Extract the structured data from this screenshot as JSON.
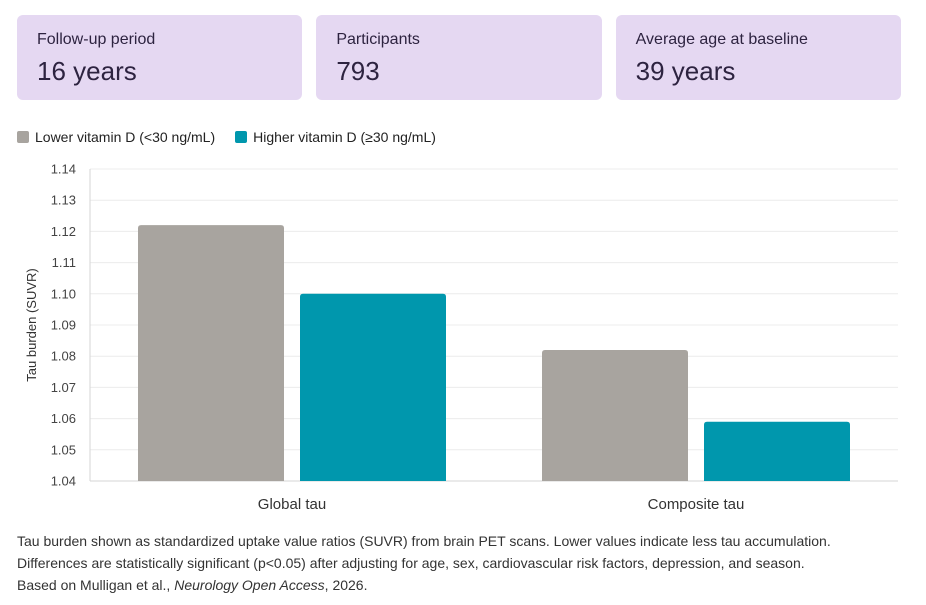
{
  "stats": [
    {
      "label": "Follow-up period",
      "value": "16 years"
    },
    {
      "label": "Participants",
      "value": "793"
    },
    {
      "label": "Average age at baseline",
      "value": "39 years"
    }
  ],
  "colors": {
    "lower": "#a8a49f",
    "higher": "#0097ad",
    "card": "#e5d8f2"
  },
  "chart_data": {
    "type": "bar",
    "categories": [
      "Global tau",
      "Composite tau"
    ],
    "series": [
      {
        "name": "Lower vitamin D (<30 ng/mL)",
        "values": [
          1.122,
          1.082
        ],
        "color": "#a8a49f"
      },
      {
        "name": "Higher vitamin D (≥30 ng/mL)",
        "values": [
          1.1,
          1.059
        ],
        "color": "#0097ad"
      }
    ],
    "ylabel": "Tau burden (SUVR)",
    "ylim": [
      1.04,
      1.14
    ],
    "yticks": [
      "1.04",
      "1.05",
      "1.06",
      "1.07",
      "1.08",
      "1.09",
      "1.10",
      "1.11",
      "1.12",
      "1.13",
      "1.14"
    ],
    "grid": true,
    "legend": "top-left"
  },
  "footnote": {
    "line1": "Tau burden shown as standardized uptake value ratios (SUVR) from brain PET scans. Lower values indicate less tau accumulation.",
    "line2": "Differences are statistically significant (p<0.05) after adjusting for age, sex, cardiovascular risk factors, depression, and season.",
    "line3_prefix": "Based on Mulligan et al., ",
    "line3_journal": "Neurology Open Access",
    "line3_suffix": ", 2026."
  }
}
